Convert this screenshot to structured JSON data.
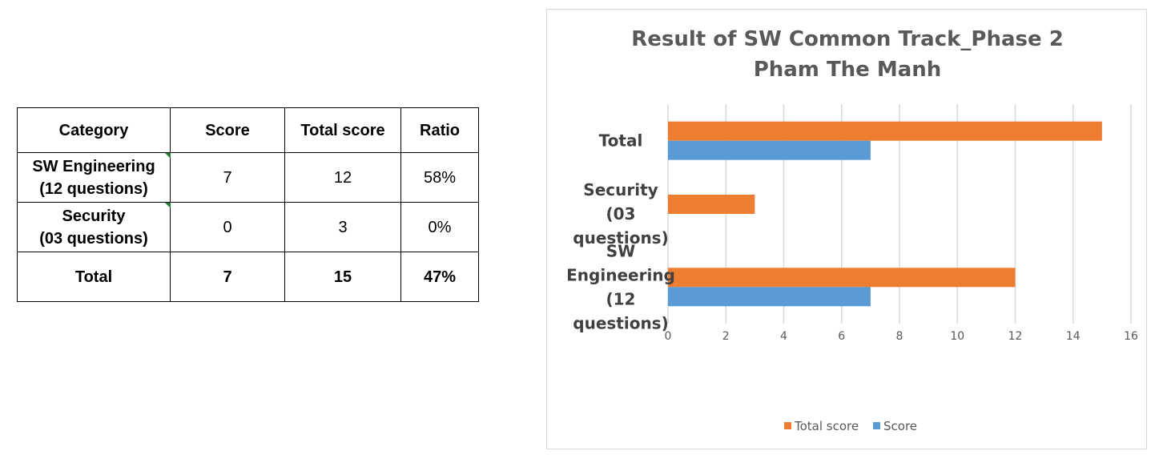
{
  "table": {
    "headers": [
      "Category",
      "Score",
      "Total score",
      "Ratio"
    ],
    "rows": [
      {
        "category": "SW Engineering\n(12 questions)",
        "score": "7",
        "total": "12",
        "ratio": "58%"
      },
      {
        "category": "Security\n(03 questions)",
        "score": "0",
        "total": "3",
        "ratio": "0%"
      },
      {
        "category": "Total",
        "score": "7",
        "total": "15",
        "ratio": "47%"
      }
    ]
  },
  "colors": {
    "total_score": "#ed7d31",
    "score": "#5b9bd5",
    "grid": "#d9d9d9"
  },
  "chart_data": {
    "type": "bar",
    "orientation": "horizontal",
    "title": "Result of SW Common Track_Phase 2",
    "subtitle": "Pham The Manh",
    "categories": [
      "SW Engineering (12 questions)",
      "Security (03 questions)",
      "Total"
    ],
    "category_lines": [
      [
        "SW",
        "Engineering",
        "(12",
        "questions)"
      ],
      [
        "Security",
        "(03",
        "questions)"
      ],
      [
        "Total"
      ]
    ],
    "series": [
      {
        "name": "Score",
        "values": [
          7,
          0,
          7
        ]
      },
      {
        "name": "Total score",
        "values": [
          12,
          3,
          15
        ]
      }
    ],
    "xlim": [
      0,
      16
    ],
    "xticks": [
      "0",
      "2",
      "4",
      "6",
      "8",
      "10",
      "12",
      "14",
      "16"
    ],
    "grid": true,
    "legend": "bottom"
  }
}
